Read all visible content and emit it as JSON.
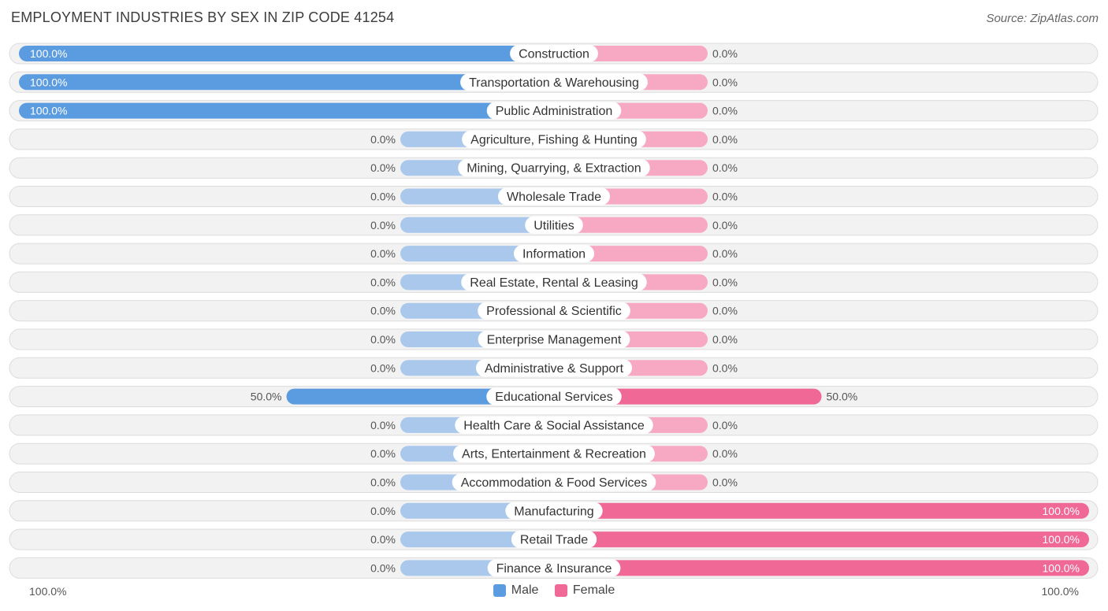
{
  "title": "EMPLOYMENT INDUSTRIES BY SEX IN ZIP CODE 41254",
  "source": "Source: ZipAtlas.com",
  "colors": {
    "male_strong": "#5b9be0",
    "male_light": "#a9c8ec",
    "female_strong": "#f06896",
    "female_light": "#f7a9c3"
  },
  "legend": {
    "male": "Male",
    "female": "Female"
  },
  "axis": {
    "left_label": "100.0%",
    "right_label": "100.0%"
  },
  "chart_data": {
    "type": "bar",
    "orientation": "horizontal-diverging",
    "title": "EMPLOYMENT INDUSTRIES BY SEX IN ZIP CODE 41254",
    "categories": [
      "Construction",
      "Transportation & Warehousing",
      "Public Administration",
      "Agriculture, Fishing & Hunting",
      "Mining, Quarrying, & Extraction",
      "Wholesale Trade",
      "Utilities",
      "Information",
      "Real Estate, Rental & Leasing",
      "Professional & Scientific",
      "Enterprise Management",
      "Administrative & Support",
      "Educational Services",
      "Health Care & Social Assistance",
      "Arts, Entertainment & Recreation",
      "Accommodation & Food Services",
      "Manufacturing",
      "Retail Trade",
      "Finance & Insurance"
    ],
    "series": [
      {
        "name": "Male",
        "values": [
          100,
          100,
          100,
          0,
          0,
          0,
          0,
          0,
          0,
          0,
          0,
          0,
          50,
          0,
          0,
          0,
          0,
          0,
          0
        ]
      },
      {
        "name": "Female",
        "values": [
          0,
          0,
          0,
          0,
          0,
          0,
          0,
          0,
          0,
          0,
          0,
          0,
          50,
          0,
          0,
          0,
          100,
          100,
          100
        ]
      }
    ],
    "value_labels": {
      "male": [
        "100.0%",
        "100.0%",
        "100.0%",
        "0.0%",
        "0.0%",
        "0.0%",
        "0.0%",
        "0.0%",
        "0.0%",
        "0.0%",
        "0.0%",
        "0.0%",
        "50.0%",
        "0.0%",
        "0.0%",
        "0.0%",
        "0.0%",
        "0.0%",
        "0.0%"
      ],
      "female": [
        "0.0%",
        "0.0%",
        "0.0%",
        "0.0%",
        "0.0%",
        "0.0%",
        "0.0%",
        "0.0%",
        "0.0%",
        "0.0%",
        "0.0%",
        "0.0%",
        "50.0%",
        "0.0%",
        "0.0%",
        "0.0%",
        "100.0%",
        "100.0%",
        "100.0%"
      ]
    },
    "xlim": [
      -100,
      100
    ],
    "unit": "%",
    "legend_position": "bottom-center"
  }
}
